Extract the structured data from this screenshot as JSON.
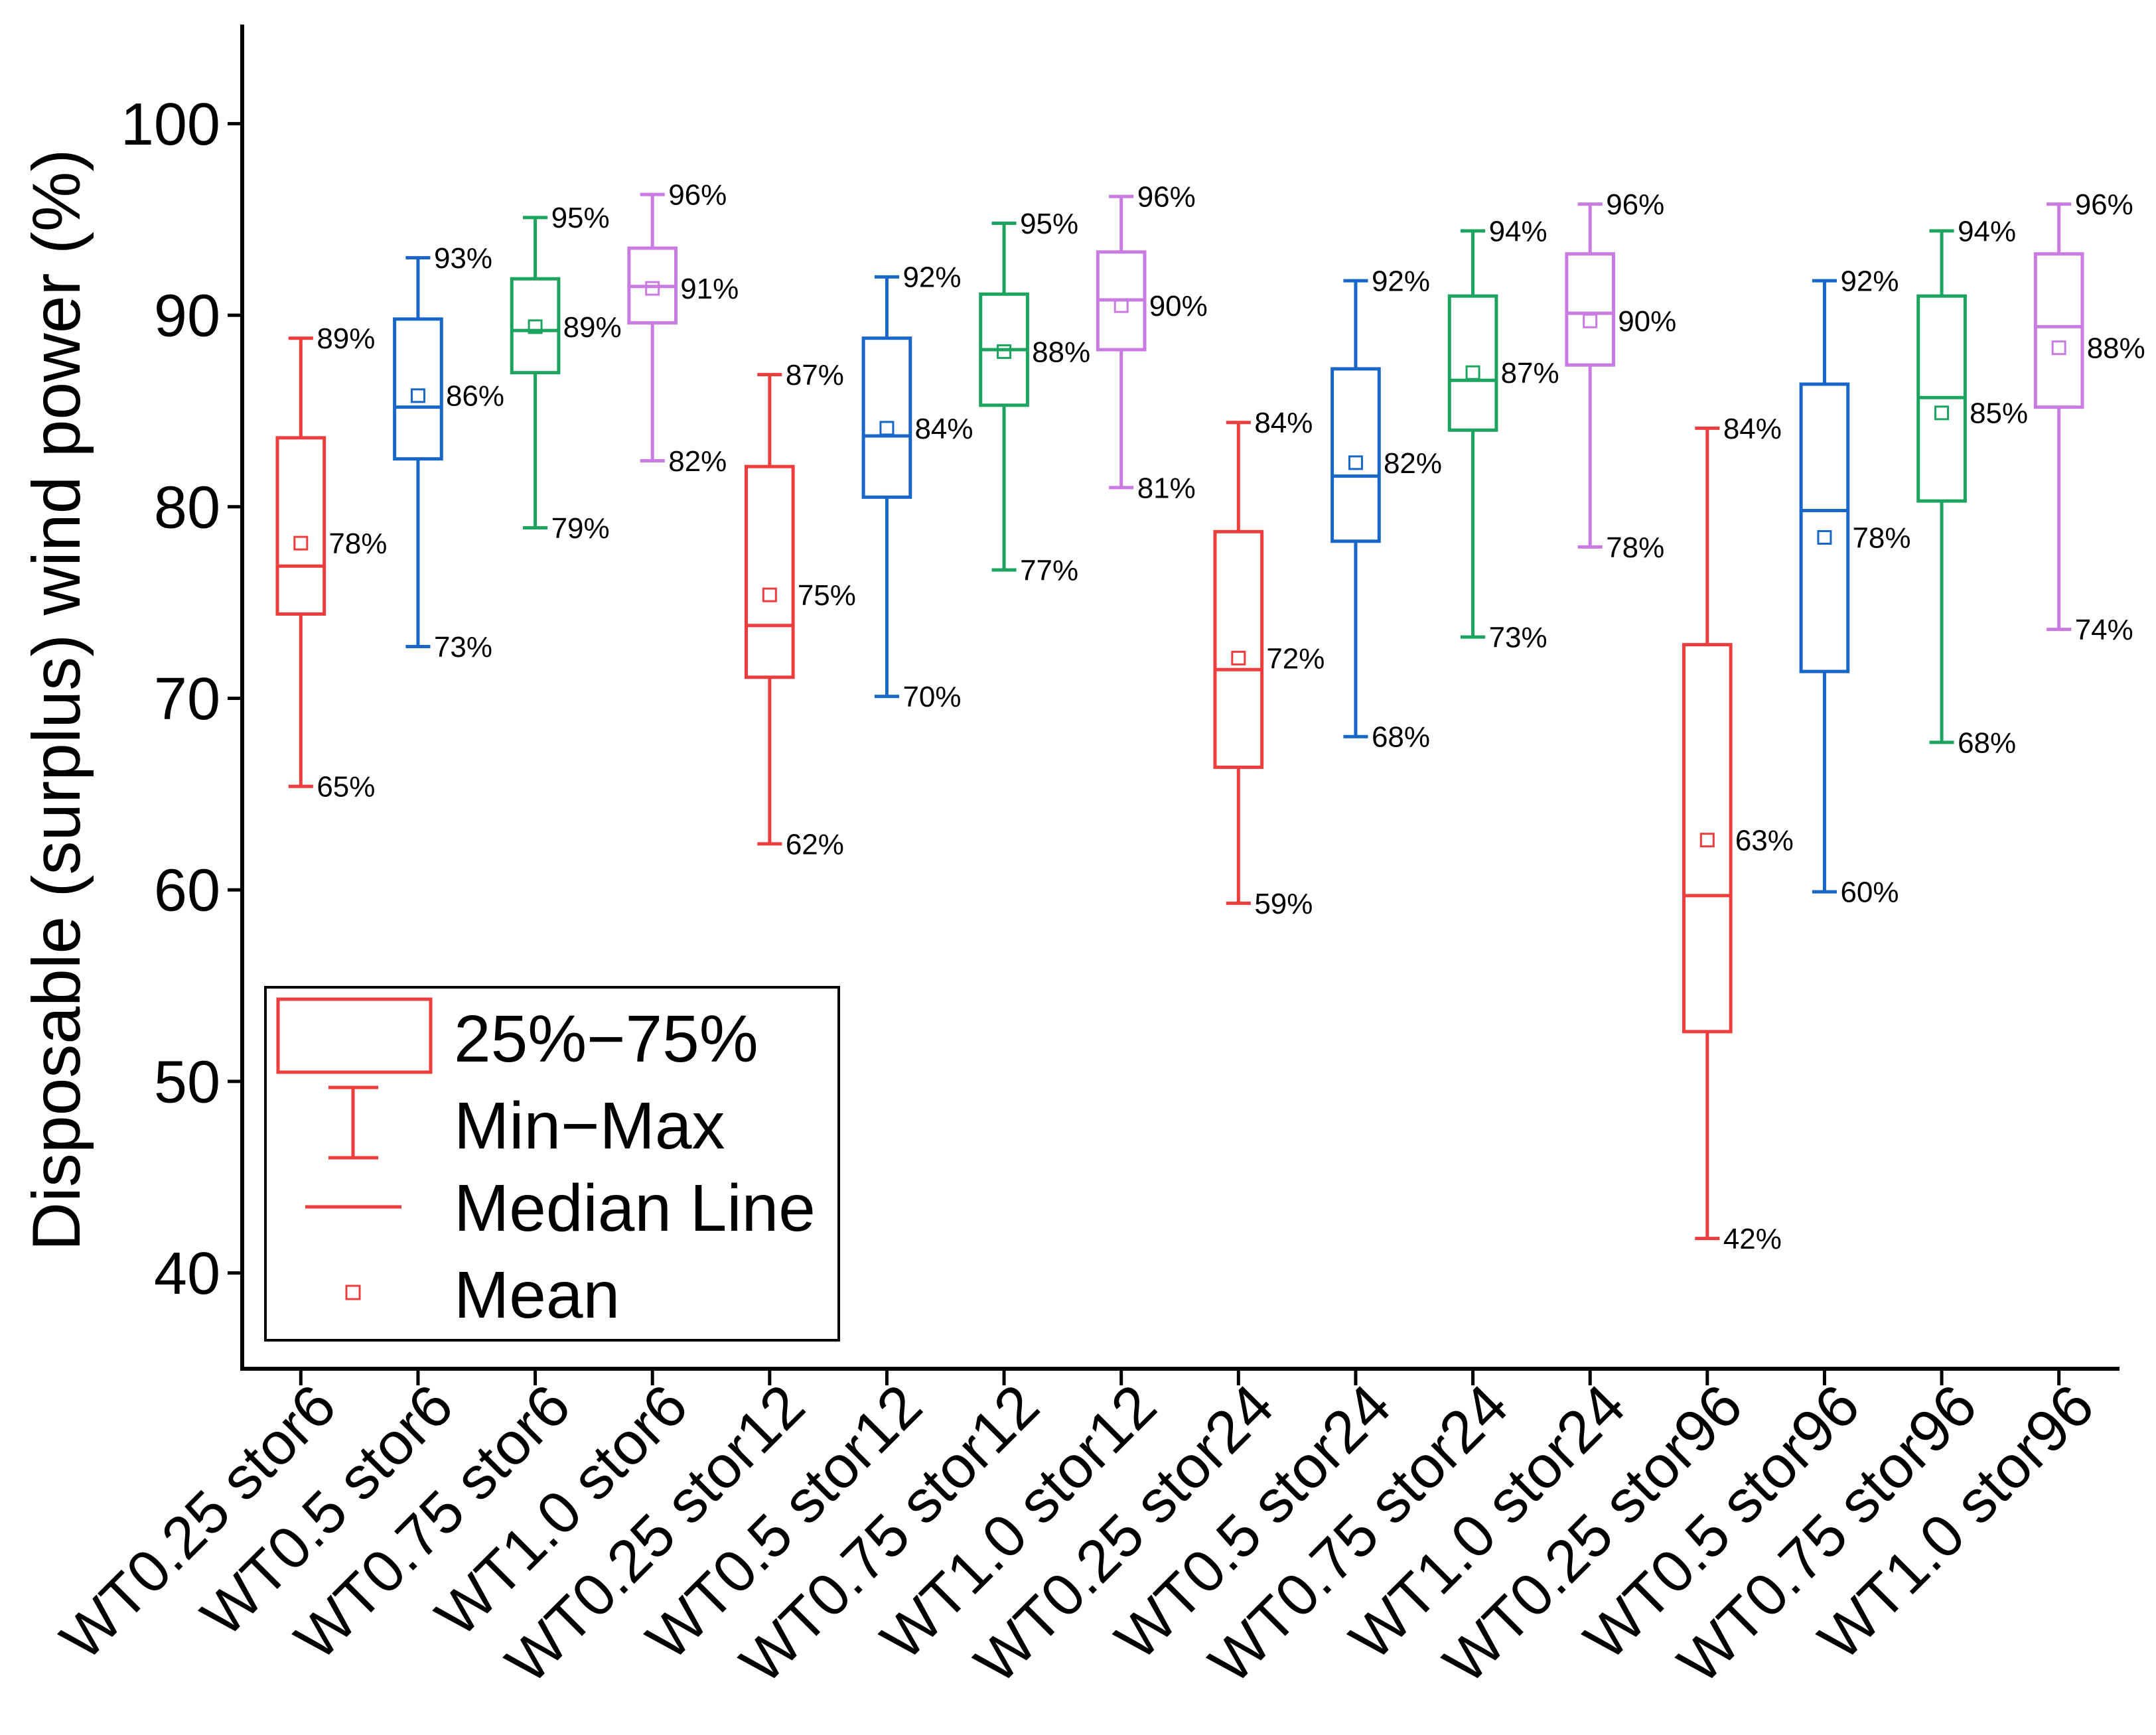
{
  "chart_data": {
    "type": "box",
    "ylabel": "Disposable (surplus) wind power (%)",
    "ylim": [
      35,
      105
    ],
    "yticks": [
      40,
      50,
      60,
      70,
      80,
      90,
      100
    ],
    "grid": false,
    "categories": [
      "WT0.25 stor6",
      "WT0.5 stor6",
      "WT0.75 stor6",
      "WT1.0 stor6",
      "WT0.25 stor12",
      "WT0.5 stor12",
      "WT0.75 stor12",
      "WT1.0 stor12",
      "WT0.25 stor24",
      "WT0.5 stor24",
      "WT0.75 stor24",
      "WT1.0 stor24",
      "WT0.25 stor96",
      "WT0.5 stor96",
      "WT0.75 stor96",
      "WT1.0 stor96"
    ],
    "boxes": [
      {
        "color": "#EE3D3D",
        "min": 65.4,
        "q1": 74.4,
        "median": 76.9,
        "q3": 83.6,
        "max": 88.8,
        "mean": 78.1,
        "labels": {
          "max": "89%",
          "mean": "78%",
          "min": "65%"
        }
      },
      {
        "color": "#1866C8",
        "min": 72.7,
        "q1": 82.5,
        "median": 85.2,
        "q3": 89.8,
        "max": 93.0,
        "mean": 85.8,
        "labels": {
          "max": "93%",
          "mean": "86%",
          "min": "73%"
        }
      },
      {
        "color": "#1CA35F",
        "min": 78.9,
        "q1": 87.0,
        "median": 89.2,
        "q3": 91.9,
        "max": 95.1,
        "mean": 89.4,
        "labels": {
          "max": "95%",
          "mean": "89%",
          "min": "79%"
        }
      },
      {
        "color": "#C97BE3",
        "min": 82.4,
        "q1": 89.6,
        "median": 91.5,
        "q3": 93.5,
        "max": 96.3,
        "mean": 91.4,
        "labels": {
          "max": "96%",
          "mean": "91%",
          "min": "82%"
        }
      },
      {
        "color": "#EE3D3D",
        "min": 62.4,
        "q1": 71.1,
        "median": 73.8,
        "q3": 82.1,
        "max": 86.9,
        "mean": 75.4,
        "labels": {
          "max": "87%",
          "mean": "75%",
          "min": "62%"
        }
      },
      {
        "color": "#1866C8",
        "min": 70.1,
        "q1": 80.5,
        "median": 83.7,
        "q3": 88.8,
        "max": 92.0,
        "mean": 84.1,
        "labels": {
          "max": "92%",
          "mean": "84%",
          "min": "70%"
        }
      },
      {
        "color": "#1CA35F",
        "min": 76.7,
        "q1": 85.3,
        "median": 88.2,
        "q3": 91.1,
        "max": 94.8,
        "mean": 88.1,
        "labels": {
          "max": "95%",
          "mean": "88%",
          "min": "77%"
        }
      },
      {
        "color": "#C97BE3",
        "min": 81.0,
        "q1": 88.2,
        "median": 90.8,
        "q3": 93.3,
        "max": 96.2,
        "mean": 90.5,
        "labels": {
          "max": "96%",
          "mean": "90%",
          "min": "81%"
        }
      },
      {
        "color": "#EE3D3D",
        "min": 59.3,
        "q1": 66.4,
        "median": 71.5,
        "q3": 78.7,
        "max": 84.4,
        "mean": 72.1,
        "labels": {
          "max": "84%",
          "mean": "72%",
          "min": "59%"
        }
      },
      {
        "color": "#1866C8",
        "min": 68.0,
        "q1": 78.2,
        "median": 81.6,
        "q3": 87.2,
        "max": 91.8,
        "mean": 82.3,
        "labels": {
          "max": "92%",
          "mean": "82%",
          "min": "68%"
        }
      },
      {
        "color": "#1CA35F",
        "min": 73.2,
        "q1": 84.0,
        "median": 86.6,
        "q3": 91.0,
        "max": 94.4,
        "mean": 87.0,
        "labels": {
          "max": "94%",
          "mean": "87%",
          "min": "73%"
        }
      },
      {
        "color": "#C97BE3",
        "min": 77.9,
        "q1": 87.4,
        "median": 90.1,
        "q3": 93.2,
        "max": 95.8,
        "mean": 89.7,
        "labels": {
          "max": "96%",
          "mean": "90%",
          "min": "78%"
        }
      },
      {
        "color": "#EE3D3D",
        "min": 41.8,
        "q1": 52.6,
        "median": 59.7,
        "q3": 72.8,
        "max": 84.1,
        "mean": 62.6,
        "labels": {
          "max": "84%",
          "mean": "63%",
          "min": "42%"
        }
      },
      {
        "color": "#1866C8",
        "min": 59.9,
        "q1": 71.4,
        "median": 79.8,
        "q3": 86.4,
        "max": 91.8,
        "mean": 78.4,
        "labels": {
          "max": "92%",
          "mean": "78%",
          "min": "60%"
        }
      },
      {
        "color": "#1CA35F",
        "min": 67.7,
        "q1": 80.3,
        "median": 85.7,
        "q3": 91.0,
        "max": 94.4,
        "mean": 84.9,
        "labels": {
          "max": "94%",
          "mean": "85%",
          "min": "68%"
        }
      },
      {
        "color": "#C97BE3",
        "min": 73.6,
        "q1": 85.2,
        "median": 89.4,
        "q3": 93.2,
        "max": 95.8,
        "mean": 88.3,
        "labels": {
          "max": "96%",
          "mean": "88%",
          "min": "74%"
        }
      }
    ],
    "legend": {
      "position": "bottom-left",
      "color": "#EE3D3D",
      "entries": [
        "25%−75%",
        "Min−Max",
        "Median Line",
        "Mean"
      ]
    }
  }
}
